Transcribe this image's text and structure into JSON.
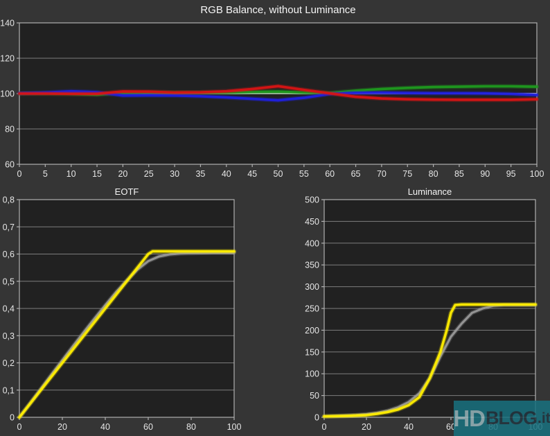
{
  "colors": {
    "page_background": "#353535",
    "plot_background": "#212121",
    "grid": "#9c9c9c",
    "grid_emphasis": "#efefef",
    "plot_border": "#b0b0b0",
    "tick_text": "#e6e6e6",
    "title_text": "#f5f5f5",
    "red": "#d81414",
    "green": "#1f9a1f",
    "blue": "#2020e0",
    "yellow": "#ffee00",
    "gray": "#989898"
  },
  "watermark": {
    "hd": "HD",
    "blog": "BLOG",
    "it": ".it",
    "bg": "#18717f",
    "bg_opacity": "0.85",
    "hd_color": "#c2cdd0",
    "blog_color": "#233640",
    "it_color": "#233640"
  },
  "chart_data": [
    {
      "id": "rgb_balance",
      "type": "line",
      "title": "RGB Balance, without Luminance",
      "xlabel": "",
      "ylabel": "",
      "xlim": [
        0,
        100
      ],
      "ylim": [
        60,
        140
      ],
      "grid": true,
      "legend": "none",
      "emphasis_y": 100,
      "x_tick_values": [
        0,
        5,
        10,
        15,
        20,
        25,
        30,
        35,
        40,
        45,
        50,
        55,
        60,
        65,
        70,
        75,
        80,
        85,
        90,
        95,
        100
      ],
      "x_ticks": [
        "0",
        "5",
        "10",
        "15",
        "20",
        "25",
        "30",
        "35",
        "40",
        "45",
        "50",
        "55",
        "60",
        "65",
        "70",
        "75",
        "80",
        "85",
        "90",
        "95",
        "100"
      ],
      "y_tick_values": [
        60,
        80,
        100,
        120,
        140
      ],
      "y_ticks": [
        "60",
        "80",
        "100",
        "120",
        "140"
      ],
      "x": [
        0,
        5,
        10,
        15,
        20,
        25,
        30,
        35,
        40,
        45,
        50,
        55,
        60,
        65,
        70,
        75,
        80,
        85,
        90,
        95,
        100
      ],
      "series": [
        {
          "name": "green",
          "color": "#1f9a1f",
          "width": 3.6,
          "values": [
            100,
            100.1,
            99.9,
            99.4,
            100.3,
            100.6,
            100.5,
            100.5,
            100.6,
            100.9,
            101.1,
            100.6,
            100.3,
            101.6,
            102.6,
            103.2,
            103.7,
            103.9,
            104.1,
            104.1,
            103.9
          ]
        },
        {
          "name": "blue",
          "color": "#2020e0",
          "width": 3.6,
          "values": [
            100.2,
            100.6,
            101.3,
            100.8,
            98.9,
            99,
            98.9,
            98.5,
            97.9,
            97,
            96.2,
            97.6,
            99.8,
            100.4,
            100.5,
            100.3,
            100.2,
            100.2,
            100.1,
            99.8,
            99.2
          ]
        },
        {
          "name": "red",
          "color": "#d81414",
          "width": 3.6,
          "values": [
            100,
            100,
            99.9,
            99.9,
            101.2,
            101.1,
            100.6,
            100.7,
            101.3,
            102.6,
            104.2,
            102.1,
            100.1,
            98.2,
            97.2,
            96.8,
            96.6,
            96.5,
            96.5,
            96.5,
            96.8
          ]
        }
      ]
    },
    {
      "id": "eotf",
      "type": "line",
      "title": "EOTF",
      "xlabel": "",
      "ylabel": "",
      "xlim": [
        0,
        100
      ],
      "ylim": [
        0,
        0.8
      ],
      "grid": true,
      "legend": "none",
      "x_tick_values": [
        0,
        20,
        40,
        60,
        80,
        100
      ],
      "x_ticks": [
        "0",
        "20",
        "40",
        "60",
        "80",
        "100"
      ],
      "y_tick_values": [
        0,
        0.1,
        0.2,
        0.3,
        0.4,
        0.5,
        0.6,
        0.7,
        0.8
      ],
      "y_ticks": [
        "0",
        "0,1",
        "0,2",
        "0,3",
        "0,4",
        "0,5",
        "0,6",
        "0,7",
        "0,8"
      ],
      "x": [
        0,
        5,
        10,
        15,
        20,
        25,
        30,
        35,
        40,
        45,
        50,
        55,
        60,
        65,
        70,
        75,
        80,
        85,
        90,
        95,
        100
      ],
      "series": [
        {
          "name": "reference-gray",
          "color": "#989898",
          "width": 3.2,
          "values": [
            0,
            0.052,
            0.105,
            0.158,
            0.21,
            0.262,
            0.313,
            0.363,
            0.412,
            0.46,
            0.503,
            0.543,
            0.574,
            0.591,
            0.599,
            0.602,
            0.603,
            0.604,
            0.605,
            0.605,
            0.605
          ]
        },
        {
          "name": "measured-yellow",
          "color": "#ffee00",
          "width": 3.6,
          "x": [
            0,
            55,
            60,
            62,
            100
          ],
          "values": [
            0,
            0.55,
            0.6,
            0.61,
            0.61
          ]
        }
      ]
    },
    {
      "id": "luminance",
      "type": "line",
      "title": "Luminance",
      "xlabel": "",
      "ylabel": "",
      "xlim": [
        0,
        100
      ],
      "ylim": [
        0,
        500
      ],
      "grid": true,
      "legend": "none",
      "x_tick_values": [
        0,
        20,
        40,
        60,
        80,
        100
      ],
      "x_ticks": [
        "0",
        "20",
        "40",
        "60",
        "80",
        "100"
      ],
      "y_tick_values": [
        0,
        50,
        100,
        150,
        200,
        250,
        300,
        350,
        400,
        450,
        500
      ],
      "y_ticks": [
        "0",
        "50",
        "100",
        "150",
        "200",
        "250",
        "300",
        "350",
        "400",
        "450",
        "500"
      ],
      "x": [
        0,
        5,
        10,
        15,
        20,
        25,
        30,
        35,
        40,
        45,
        50,
        55,
        60,
        65,
        70,
        75,
        80,
        85,
        90,
        95,
        100
      ],
      "series": [
        {
          "name": "reference-gray",
          "color": "#989898",
          "width": 3.2,
          "values": [
            2,
            3,
            4,
            5,
            7,
            10,
            15,
            23,
            35,
            55,
            90,
            140,
            185,
            215,
            240,
            250,
            256,
            258,
            258,
            258,
            258
          ]
        },
        {
          "name": "measured-yellow",
          "color": "#ffee00",
          "width": 3.6,
          "x": [
            0,
            10,
            20,
            25,
            30,
            35,
            40,
            45,
            50,
            55,
            58,
            60,
            62,
            65,
            100
          ],
          "values": [
            2,
            3,
            5,
            8,
            12,
            18,
            28,
            46,
            90,
            150,
            200,
            240,
            258,
            259,
            259
          ]
        }
      ]
    }
  ]
}
